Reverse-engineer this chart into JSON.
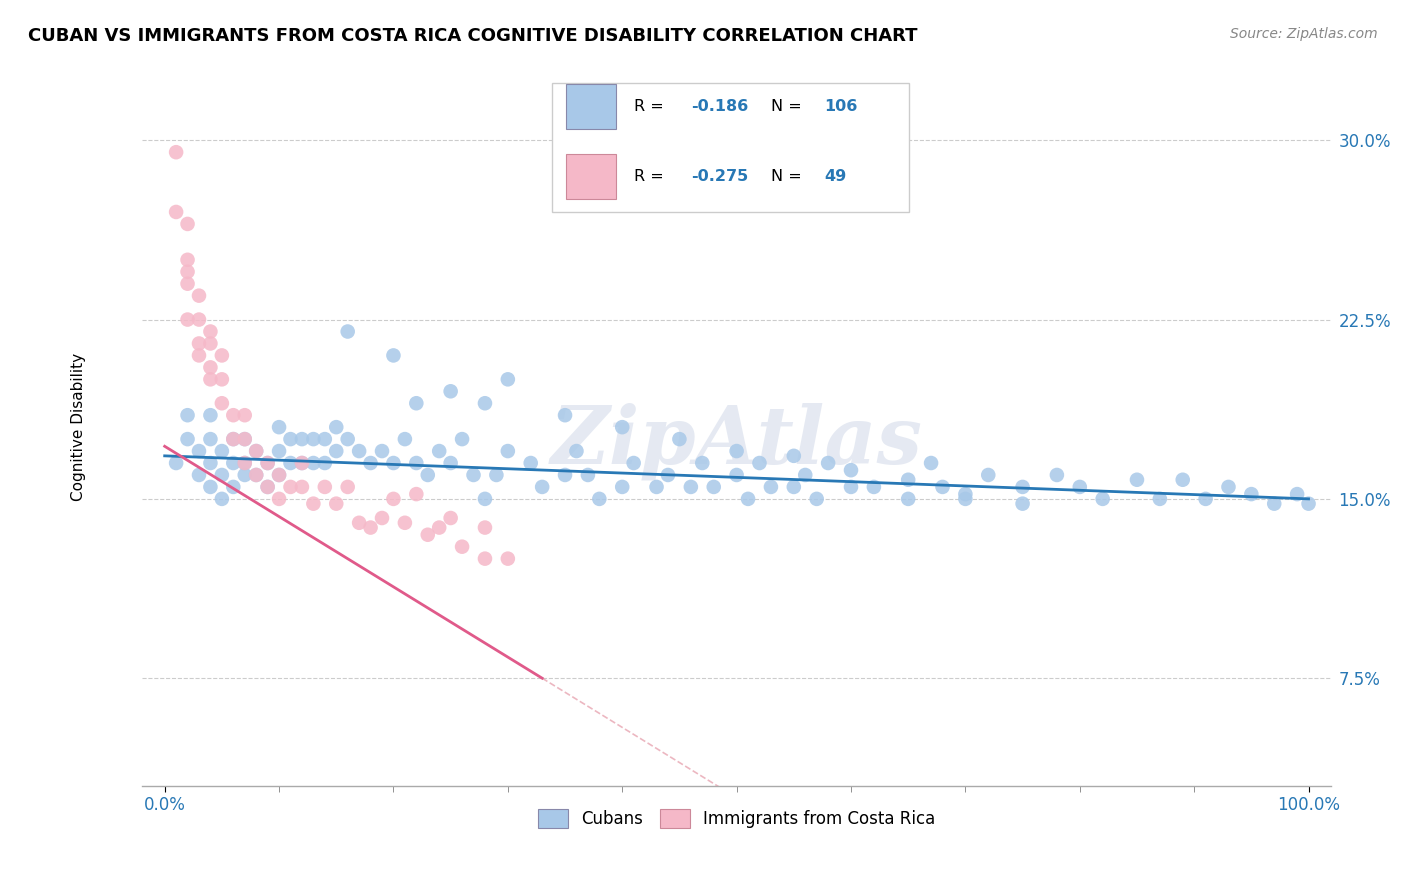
{
  "title": "CUBAN VS IMMIGRANTS FROM COSTA RICA COGNITIVE DISABILITY CORRELATION CHART",
  "source": "Source: ZipAtlas.com",
  "ylabel": "Cognitive Disability",
  "xlim": [
    -0.02,
    1.02
  ],
  "ylim": [
    0.03,
    0.33
  ],
  "yticks": [
    0.075,
    0.15,
    0.225,
    0.3
  ],
  "ytick_labels": [
    "7.5%",
    "15.0%",
    "22.5%",
    "30.0%"
  ],
  "xtick_positions": [
    0.0,
    1.0
  ],
  "xtick_labels": [
    "0.0%",
    "100.0%"
  ],
  "blue_line_color": "#2878b5",
  "pink_line_color": "#e05a8a",
  "pink_line_color_solid": "#e05a8a",
  "blue_scatter_color": "#a8c8e8",
  "pink_scatter_color": "#f5b8c8",
  "watermark": "ZipAtlas",
  "legend_label_1": "Cubans",
  "legend_label_2": "Immigrants from Costa Rica",
  "title_fontsize": 13,
  "source_fontsize": 10,
  "blue_line_start_y": 0.168,
  "blue_line_end_y": 0.15,
  "pink_line_start_x": 0.0,
  "pink_line_start_y": 0.172,
  "pink_line_end_x": 0.33,
  "pink_line_end_y": 0.075,
  "blue_x": [
    0.01,
    0.02,
    0.02,
    0.03,
    0.03,
    0.04,
    0.04,
    0.04,
    0.04,
    0.05,
    0.05,
    0.05,
    0.06,
    0.06,
    0.06,
    0.07,
    0.07,
    0.07,
    0.08,
    0.08,
    0.09,
    0.09,
    0.1,
    0.1,
    0.1,
    0.11,
    0.11,
    0.12,
    0.12,
    0.13,
    0.13,
    0.14,
    0.14,
    0.15,
    0.15,
    0.16,
    0.17,
    0.18,
    0.19,
    0.2,
    0.21,
    0.22,
    0.23,
    0.24,
    0.25,
    0.26,
    0.27,
    0.28,
    0.29,
    0.3,
    0.32,
    0.33,
    0.35,
    0.36,
    0.37,
    0.38,
    0.4,
    0.41,
    0.43,
    0.44,
    0.46,
    0.47,
    0.48,
    0.5,
    0.51,
    0.52,
    0.53,
    0.55,
    0.56,
    0.57,
    0.58,
    0.6,
    0.62,
    0.65,
    0.67,
    0.68,
    0.7,
    0.72,
    0.75,
    0.78,
    0.8,
    0.82,
    0.85,
    0.87,
    0.89,
    0.91,
    0.93,
    0.95,
    0.97,
    0.99,
    1.0,
    0.16,
    0.2,
    0.22,
    0.25,
    0.28,
    0.3,
    0.35,
    0.4,
    0.45,
    0.5,
    0.55,
    0.6,
    0.65,
    0.7,
    0.75
  ],
  "blue_y": [
    0.165,
    0.175,
    0.185,
    0.16,
    0.17,
    0.155,
    0.165,
    0.175,
    0.185,
    0.15,
    0.16,
    0.17,
    0.155,
    0.165,
    0.175,
    0.16,
    0.165,
    0.175,
    0.16,
    0.17,
    0.155,
    0.165,
    0.16,
    0.17,
    0.18,
    0.165,
    0.175,
    0.165,
    0.175,
    0.165,
    0.175,
    0.165,
    0.175,
    0.17,
    0.18,
    0.175,
    0.17,
    0.165,
    0.17,
    0.165,
    0.175,
    0.165,
    0.16,
    0.17,
    0.165,
    0.175,
    0.16,
    0.15,
    0.16,
    0.17,
    0.165,
    0.155,
    0.16,
    0.17,
    0.16,
    0.15,
    0.155,
    0.165,
    0.155,
    0.16,
    0.155,
    0.165,
    0.155,
    0.16,
    0.15,
    0.165,
    0.155,
    0.155,
    0.16,
    0.15,
    0.165,
    0.155,
    0.155,
    0.15,
    0.165,
    0.155,
    0.15,
    0.16,
    0.155,
    0.16,
    0.155,
    0.15,
    0.158,
    0.15,
    0.158,
    0.15,
    0.155,
    0.152,
    0.148,
    0.152,
    0.148,
    0.22,
    0.21,
    0.19,
    0.195,
    0.19,
    0.2,
    0.185,
    0.18,
    0.175,
    0.17,
    0.168,
    0.162,
    0.158,
    0.152,
    0.148
  ],
  "pink_x": [
    0.01,
    0.01,
    0.02,
    0.02,
    0.02,
    0.02,
    0.02,
    0.03,
    0.03,
    0.03,
    0.03,
    0.04,
    0.04,
    0.04,
    0.04,
    0.05,
    0.05,
    0.05,
    0.06,
    0.06,
    0.07,
    0.07,
    0.07,
    0.08,
    0.08,
    0.09,
    0.09,
    0.1,
    0.1,
    0.11,
    0.12,
    0.12,
    0.13,
    0.14,
    0.15,
    0.16,
    0.17,
    0.18,
    0.19,
    0.2,
    0.21,
    0.22,
    0.23,
    0.24,
    0.25,
    0.26,
    0.28,
    0.28,
    0.3
  ],
  "pink_y": [
    0.27,
    0.295,
    0.25,
    0.265,
    0.24,
    0.225,
    0.245,
    0.215,
    0.225,
    0.21,
    0.235,
    0.2,
    0.215,
    0.205,
    0.22,
    0.19,
    0.2,
    0.21,
    0.175,
    0.185,
    0.165,
    0.175,
    0.185,
    0.16,
    0.17,
    0.155,
    0.165,
    0.15,
    0.16,
    0.155,
    0.155,
    0.165,
    0.148,
    0.155,
    0.148,
    0.155,
    0.14,
    0.138,
    0.142,
    0.15,
    0.14,
    0.152,
    0.135,
    0.138,
    0.142,
    0.13,
    0.138,
    0.125,
    0.125
  ]
}
